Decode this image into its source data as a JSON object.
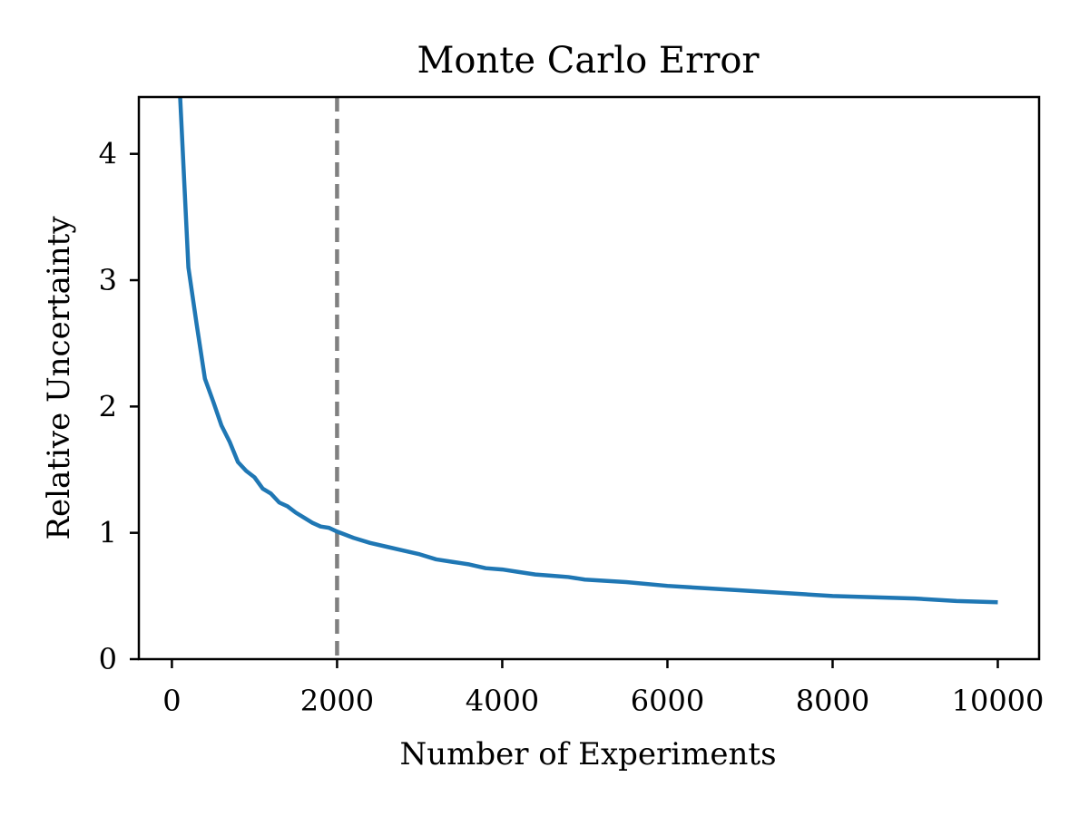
{
  "chart_data": {
    "type": "line",
    "title": "Monte Carlo Error",
    "xlabel": "Number of Experiments",
    "ylabel": "Relative Uncertainty",
    "xlim": [
      -400,
      10500
    ],
    "ylim": [
      0,
      4.45
    ],
    "xticks": [
      0,
      2000,
      4000,
      6000,
      8000,
      10000
    ],
    "xtick_labels": [
      "0",
      "2000",
      "4000",
      "6000",
      "8000",
      "10000"
    ],
    "yticks": [
      0,
      1,
      2,
      3,
      4
    ],
    "ytick_labels": [
      "0",
      "1",
      "2",
      "3",
      "4"
    ],
    "grid": false,
    "vline": {
      "x": 2000,
      "style": "dashed",
      "color": "#808080"
    },
    "series": [
      {
        "color": "#1f77b4",
        "x": [
          100,
          200,
          300,
          400,
          500,
          600,
          700,
          800,
          900,
          1000,
          1100,
          1200,
          1300,
          1400,
          1500,
          1600,
          1700,
          1800,
          1900,
          2000,
          2200,
          2400,
          2600,
          2800,
          3000,
          3200,
          3400,
          3600,
          3800,
          4000,
          4200,
          4400,
          4600,
          4800,
          5000,
          5500,
          6000,
          6500,
          7000,
          7500,
          8000,
          8500,
          9000,
          9500,
          10000
        ],
        "y": [
          4.45,
          3.1,
          2.65,
          2.22,
          2.04,
          1.85,
          1.72,
          1.56,
          1.49,
          1.44,
          1.35,
          1.31,
          1.24,
          1.21,
          1.16,
          1.12,
          1.08,
          1.05,
          1.04,
          1.01,
          0.96,
          0.92,
          0.89,
          0.86,
          0.83,
          0.79,
          0.77,
          0.75,
          0.72,
          0.71,
          0.69,
          0.67,
          0.66,
          0.65,
          0.63,
          0.61,
          0.58,
          0.56,
          0.54,
          0.52,
          0.5,
          0.49,
          0.48,
          0.46,
          0.45
        ]
      }
    ]
  }
}
